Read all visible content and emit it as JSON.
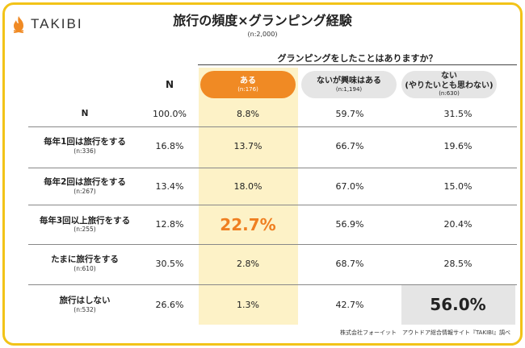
{
  "brand": {
    "name": "TAKIBI",
    "icon": "flame-icon",
    "accent": "#f08a24",
    "frame_color": "#f2c318"
  },
  "title": "旅行の頻度×グランピング経験",
  "subtitle": "(n:2,000)",
  "question": "グランピングをしたことはありますか？",
  "source": "株式会社フォーイット　アウトドア総合情報サイト『TAKIBI』調べ",
  "chart_data": {
    "type": "table",
    "title": "旅行の頻度×グランピング経験",
    "subtitle": "(n:2,000)",
    "column_group_label": "グランピングをしたことはありますか？",
    "columns": [
      {
        "label": "N",
        "n": ""
      },
      {
        "label": "ある",
        "n": "(n:176)"
      },
      {
        "label": "ないが興味はある",
        "n": "(n:1,194)"
      },
      {
        "label": "ない\n(やりたいとも思わない)",
        "n": "(n:630)"
      }
    ],
    "rows": [
      {
        "label": "N",
        "n": "",
        "values": [
          "100.0%",
          "8.8%",
          "59.7%",
          "31.5%"
        ]
      },
      {
        "label": "毎年1回は旅行をする",
        "n": "(n:336)",
        "values": [
          "16.8%",
          "13.7%",
          "66.7%",
          "19.6%"
        ]
      },
      {
        "label": "毎年2回は旅行をする",
        "n": "(n:267)",
        "values": [
          "13.4%",
          "18.0%",
          "67.0%",
          "15.0%"
        ]
      },
      {
        "label": "毎年3回以上旅行をする",
        "n": "(n:255)",
        "values": [
          "12.8%",
          "22.7%",
          "56.9%",
          "20.4%"
        ]
      },
      {
        "label": "たまに旅行をする",
        "n": "(n:610)",
        "values": [
          "30.5%",
          "2.8%",
          "68.7%",
          "28.5%"
        ]
      },
      {
        "label": "旅行はしない",
        "n": "(n:532)",
        "values": [
          "26.6%",
          "1.3%",
          "42.7%",
          "56.0%"
        ]
      }
    ],
    "highlights": [
      {
        "row": 3,
        "col": 1,
        "style": "large-orange"
      },
      {
        "row": 5,
        "col": 3,
        "style": "large-grey-box"
      }
    ],
    "colors": {
      "yes_column": "#fdf2c7",
      "yes_pill": "#f08a24",
      "highlight_text": "#ef7f21",
      "grey": "#e5e5e5"
    }
  }
}
